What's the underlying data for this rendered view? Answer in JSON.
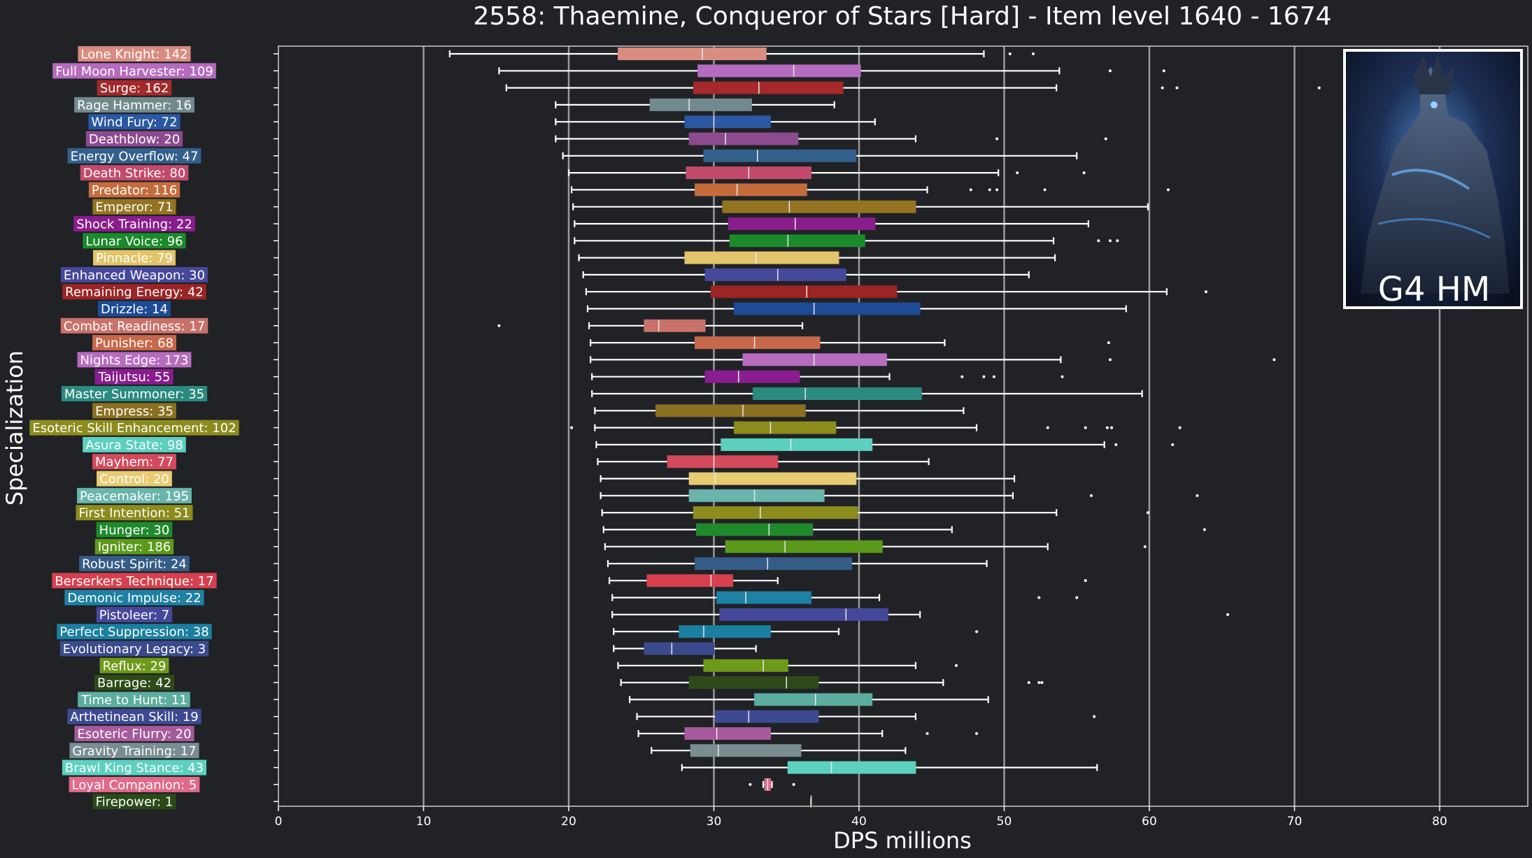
{
  "chart_data": {
    "type": "boxplot",
    "title": "2558: Thaemine, Conqueror of Stars [Hard] - Item level 1640 - 1674",
    "xlabel": "DPS millions",
    "ylabel": "Specialization",
    "xlim": [
      0,
      86
    ],
    "xticks": [
      0,
      10,
      20,
      30,
      40,
      50,
      60,
      70,
      80
    ],
    "grid": "vertical",
    "inset_label": "G4 HM",
    "categories": [
      {
        "label": "Lone Knight: 142",
        "color": "#d98c7f",
        "min": 11.8,
        "q1": 23.4,
        "median": 29.2,
        "q3": 33.6,
        "max": 48.6,
        "outliers": [
          50.4,
          52.0
        ]
      },
      {
        "label": "Full Moon Harvester: 109",
        "color": "#b56bbe",
        "min": 15.2,
        "q1": 28.9,
        "median": 35.5,
        "q3": 40.1,
        "max": 53.8,
        "outliers": [
          57.3,
          61.0
        ]
      },
      {
        "label": "Surge: 162",
        "color": "#a3292a",
        "min": 15.7,
        "q1": 28.6,
        "median": 33.1,
        "q3": 38.9,
        "max": 53.6,
        "outliers": [
          60.9,
          61.9,
          71.7
        ]
      },
      {
        "label": "Rage Hammer: 16",
        "color": "#728a8e",
        "min": 19.1,
        "q1": 25.6,
        "median": 28.3,
        "q3": 32.6,
        "max": 38.3,
        "outliers": []
      },
      {
        "label": "Wind Fury: 72",
        "color": "#2a58a2",
        "min": 19.1,
        "q1": 28.0,
        "median": 30.0,
        "q3": 33.9,
        "max": 41.1,
        "outliers": []
      },
      {
        "label": "Deathblow: 20",
        "color": "#8c4a8f",
        "min": 19.1,
        "q1": 28.3,
        "median": 30.8,
        "q3": 35.8,
        "max": 43.9,
        "outliers": [
          49.5,
          57.0
        ]
      },
      {
        "label": "Energy Overflow: 47",
        "color": "#335f8c",
        "min": 19.6,
        "q1": 29.3,
        "median": 33.0,
        "q3": 39.8,
        "max": 55.0,
        "outliers": []
      },
      {
        "label": "Death Strike: 80",
        "color": "#c24a6a",
        "min": 20.0,
        "q1": 28.1,
        "median": 32.4,
        "q3": 36.7,
        "max": 49.6,
        "outliers": [
          50.9,
          55.5
        ]
      },
      {
        "label": "Predator: 116",
        "color": "#c56c3c",
        "min": 20.2,
        "q1": 28.7,
        "median": 31.6,
        "q3": 36.4,
        "max": 44.7,
        "outliers": [
          47.7,
          49.0,
          49.5,
          52.8,
          61.3
        ]
      },
      {
        "label": "Emperor: 71",
        "color": "#947421",
        "min": 20.3,
        "q1": 30.6,
        "median": 35.2,
        "q3": 43.9,
        "max": 59.9,
        "outliers": []
      },
      {
        "label": "Shock Training: 22",
        "color": "#8a1d8c",
        "min": 20.4,
        "q1": 31.0,
        "median": 35.6,
        "q3": 41.1,
        "max": 55.8,
        "outliers": []
      },
      {
        "label": "Lunar Voice: 96",
        "color": "#1a8a2a",
        "min": 20.4,
        "q1": 31.1,
        "median": 35.1,
        "q3": 40.4,
        "max": 53.4,
        "outliers": [
          56.5,
          57.3,
          57.8
        ]
      },
      {
        "label": "Pinnacle: 79",
        "color": "#e2c56a",
        "min": 20.7,
        "q1": 28.0,
        "median": 32.9,
        "q3": 38.6,
        "max": 53.5,
        "outliers": []
      },
      {
        "label": "Enhanced Weapon: 30",
        "color": "#46489a",
        "min": 21.0,
        "q1": 29.4,
        "median": 34.4,
        "q3": 39.1,
        "max": 51.7,
        "outliers": []
      },
      {
        "label": "Remaining Energy: 42",
        "color": "#9b2424",
        "min": 21.2,
        "q1": 29.8,
        "median": 36.4,
        "q3": 42.6,
        "max": 61.2,
        "outliers": [
          63.9
        ]
      },
      {
        "label": "Drizzle: 14",
        "color": "#1d4b96",
        "min": 21.3,
        "q1": 31.4,
        "median": 36.9,
        "q3": 44.2,
        "max": 58.4,
        "outliers": []
      },
      {
        "label": "Combat Readiness: 17",
        "color": "#c9726a",
        "min": 21.4,
        "q1": 25.2,
        "median": 26.2,
        "q3": 29.4,
        "max": 36.1,
        "outliers": [
          15.2
        ]
      },
      {
        "label": "Punisher: 68",
        "color": "#c8684a",
        "min": 21.5,
        "q1": 28.7,
        "median": 32.8,
        "q3": 37.3,
        "max": 45.9,
        "outliers": [
          57.2
        ]
      },
      {
        "label": "Nights Edge: 173",
        "color": "#b86cc0",
        "min": 21.5,
        "q1": 32.0,
        "median": 36.9,
        "q3": 41.9,
        "max": 53.9,
        "outliers": [
          57.3,
          68.6
        ]
      },
      {
        "label": "Taijutsu: 55",
        "color": "#8a1d8f",
        "min": 21.6,
        "q1": 29.4,
        "median": 31.7,
        "q3": 35.9,
        "max": 42.1,
        "outliers": [
          47.1,
          48.6,
          49.3,
          54.0
        ]
      },
      {
        "label": "Master Summoner: 35",
        "color": "#2a8a7f",
        "min": 21.6,
        "q1": 32.7,
        "median": 36.3,
        "q3": 44.3,
        "max": 59.5,
        "outliers": []
      },
      {
        "label": "Empress: 35",
        "color": "#8a7020",
        "min": 21.8,
        "q1": 26.0,
        "median": 32.0,
        "q3": 36.3,
        "max": 47.2,
        "outliers": []
      },
      {
        "label": "Esoteric Skill Enhancement: 102",
        "color": "#8c8c1d",
        "min": 21.8,
        "q1": 31.4,
        "median": 33.9,
        "q3": 38.4,
        "max": 48.1,
        "outliers": [
          20.2,
          53.0,
          55.6,
          57.1,
          57.4,
          62.1
        ]
      },
      {
        "label": "Asura State: 98",
        "color": "#5ccfbf",
        "min": 21.9,
        "q1": 30.5,
        "median": 35.3,
        "q3": 40.9,
        "max": 56.9,
        "outliers": [
          57.7,
          61.6
        ]
      },
      {
        "label": "Mayhem: 77",
        "color": "#d44a5c",
        "min": 22.0,
        "q1": 26.8,
        "median": 30.0,
        "q3": 34.4,
        "max": 44.8,
        "outliers": []
      },
      {
        "label": "Control: 20",
        "color": "#e8cc72",
        "min": 22.2,
        "q1": 28.3,
        "median": 30.1,
        "q3": 39.8,
        "max": 50.7,
        "outliers": []
      },
      {
        "label": "Peacemaker: 195",
        "color": "#6ab5ab",
        "min": 22.2,
        "q1": 28.3,
        "median": 32.8,
        "q3": 37.6,
        "max": 50.6,
        "outliers": [
          56.0,
          63.3
        ]
      },
      {
        "label": "First Intention: 51",
        "color": "#8c8c1d",
        "min": 22.3,
        "q1": 28.6,
        "median": 33.2,
        "q3": 39.9,
        "max": 53.6,
        "outliers": [
          59.9
        ]
      },
      {
        "label": "Hunger: 30",
        "color": "#1f8a2c",
        "min": 22.4,
        "q1": 28.8,
        "median": 33.8,
        "q3": 36.8,
        "max": 46.4,
        "outliers": [
          63.8
        ]
      },
      {
        "label": "Igniter: 186",
        "color": "#5a9a1a",
        "min": 22.5,
        "q1": 30.8,
        "median": 34.9,
        "q3": 41.6,
        "max": 53.0,
        "outliers": [
          59.7
        ]
      },
      {
        "label": "Robust Spirit: 24",
        "color": "#345c86",
        "min": 22.7,
        "q1": 28.7,
        "median": 33.7,
        "q3": 39.5,
        "max": 48.8,
        "outliers": []
      },
      {
        "label": "Berserkers Technique: 17",
        "color": "#d6404e",
        "min": 22.8,
        "q1": 25.4,
        "median": 29.8,
        "q3": 31.3,
        "max": 34.4,
        "outliers": [
          55.6
        ]
      },
      {
        "label": "Demonic Impulse: 22",
        "color": "#1e80a3",
        "min": 23.0,
        "q1": 30.2,
        "median": 32.2,
        "q3": 36.7,
        "max": 41.4,
        "outliers": [
          52.4,
          55.0
        ]
      },
      {
        "label": "Pistoleer: 7",
        "color": "#45489a",
        "min": 23.0,
        "q1": 30.4,
        "median": 39.1,
        "q3": 42.0,
        "max": 44.2,
        "outliers": [
          65.4
        ]
      },
      {
        "label": "Perfect Suppression: 38",
        "color": "#1a7fa0",
        "min": 23.1,
        "q1": 27.6,
        "median": 29.3,
        "q3": 33.9,
        "max": 38.6,
        "outliers": [
          48.1
        ]
      },
      {
        "label": "Evolutionary Legacy: 3",
        "color": "#3a4a8c",
        "min": 23.1,
        "q1": 25.2,
        "median": 27.1,
        "q3": 30.0,
        "max": 32.9,
        "outliers": []
      },
      {
        "label": "Reflux: 29",
        "color": "#6e9a1a",
        "min": 23.4,
        "q1": 29.3,
        "median": 33.4,
        "q3": 35.1,
        "max": 43.9,
        "outliers": [
          46.7
        ]
      },
      {
        "label": "Barrage: 42",
        "color": "#2f4a18",
        "min": 23.6,
        "q1": 28.3,
        "median": 35.0,
        "q3": 37.2,
        "max": 45.8,
        "outliers": [
          51.7,
          52.4,
          52.6
        ]
      },
      {
        "label": "Time to Hunt: 11",
        "color": "#5cae9e",
        "min": 24.2,
        "q1": 32.8,
        "median": 37.0,
        "q3": 40.9,
        "max": 48.9,
        "outliers": []
      },
      {
        "label": "Arthetinean Skill: 19",
        "color": "#3d4a92",
        "min": 24.7,
        "q1": 30.1,
        "median": 32.4,
        "q3": 37.2,
        "max": 43.9,
        "outliers": [
          56.2
        ]
      },
      {
        "label": "Esoteric Flurry: 20",
        "color": "#a65a9c",
        "min": 24.8,
        "q1": 28.0,
        "median": 30.2,
        "q3": 33.9,
        "max": 41.6,
        "outliers": [
          44.7,
          48.1
        ]
      },
      {
        "label": "Gravity Training: 17",
        "color": "#7a8e92",
        "min": 25.7,
        "q1": 28.4,
        "median": 30.3,
        "q3": 36.0,
        "max": 43.2,
        "outliers": []
      },
      {
        "label": "Brawl King Stance: 43",
        "color": "#5cd1bf",
        "min": 27.8,
        "q1": 35.1,
        "median": 38.1,
        "q3": 43.9,
        "max": 56.4,
        "outliers": []
      },
      {
        "label": "Loyal Companion: 5",
        "color": "#e06a8a",
        "min": 33.4,
        "q1": 33.5,
        "median": 33.7,
        "q3": 33.9,
        "max": 34.0,
        "outliers": [
          32.5,
          35.5
        ]
      },
      {
        "label": "Firepower: 1",
        "color": "#2a4a18",
        "min": 36.7,
        "q1": 36.7,
        "median": 36.7,
        "q3": 36.7,
        "max": 36.7,
        "outliers": []
      }
    ]
  }
}
